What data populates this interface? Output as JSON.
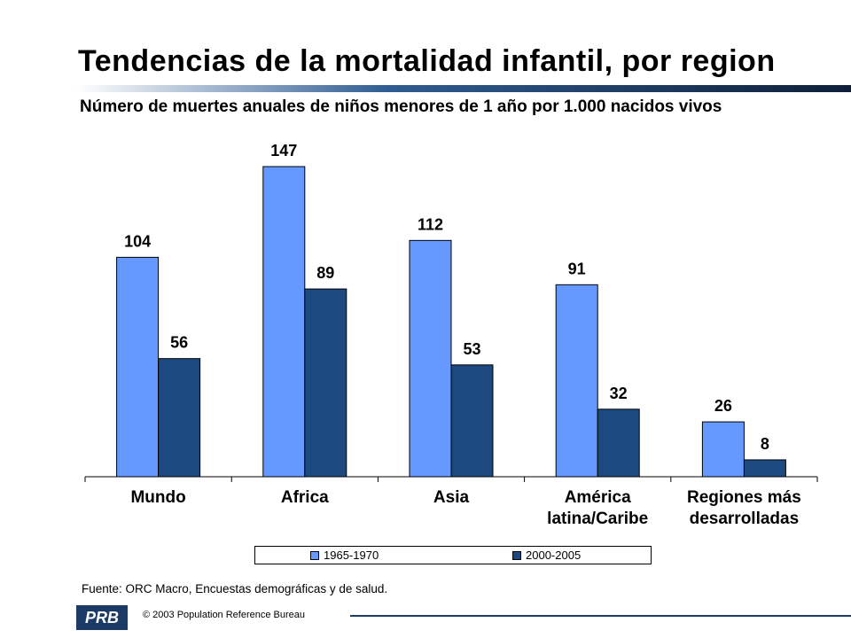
{
  "header": {
    "title": "Tendencias de la mortalidad infantil, por region",
    "subtitle": "Número de muertes anuales de niños menores de 1 año por 1.000 nacidos vivos"
  },
  "chart_data": {
    "type": "bar",
    "categories": [
      "Mundo",
      "Africa",
      "Asia",
      "América latina/Caribe",
      "Regiones más desarrolladas"
    ],
    "category_lines": [
      [
        "Mundo"
      ],
      [
        "Africa"
      ],
      [
        "Asia"
      ],
      [
        "América",
        "latina/Caribe"
      ],
      [
        "Regiones más",
        "desarrolladas"
      ]
    ],
    "series": [
      {
        "name": "1965-1970",
        "values": [
          104,
          147,
          112,
          91,
          26
        ],
        "color": "#6699ff"
      },
      {
        "name": "2000-2005",
        "values": [
          56,
          89,
          53,
          32,
          8
        ],
        "color": "#1c4a80"
      }
    ],
    "ylim": [
      0,
      147
    ],
    "grid": false,
    "legend": "bottom",
    "data_labels": true
  },
  "footer": {
    "source": "Fuente: ORC Macro, Encuestas demográficas y de salud.",
    "logo_text": "PRB",
    "copyright": "© 2003 Population Reference Bureau"
  },
  "colors": {
    "title_rule_start": "#ffffff",
    "title_rule_end": "#0e1f38",
    "footer_accent": "#1c3a66"
  }
}
